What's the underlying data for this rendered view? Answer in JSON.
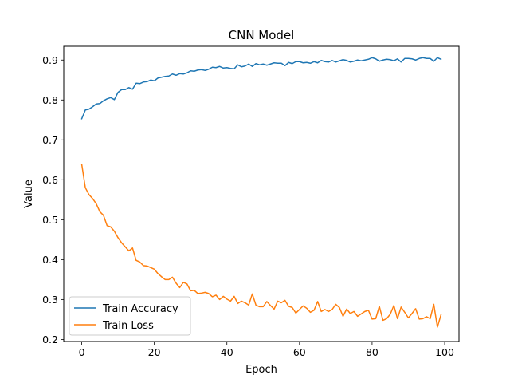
{
  "chart_data": {
    "type": "line",
    "title": "CNN Model",
    "xlabel": "Epoch",
    "ylabel": "Value",
    "xlim": [
      -4.95,
      103.95
    ],
    "ylim": [
      0.1948,
      0.9345
    ],
    "xticks": [
      0,
      20,
      40,
      60,
      80,
      100
    ],
    "yticks": [
      0.2,
      0.3,
      0.4,
      0.5,
      0.6,
      0.7,
      0.8,
      0.9
    ],
    "xtick_labels": [
      "0",
      "20",
      "40",
      "60",
      "80",
      "100"
    ],
    "ytick_labels": [
      "0.2",
      "0.3",
      "0.4",
      "0.5",
      "0.6",
      "0.7",
      "0.8",
      "0.9"
    ],
    "grid": false,
    "legend_position": "lower-left",
    "x": [
      0,
      1,
      2,
      3,
      4,
      5,
      6,
      7,
      8,
      9,
      10,
      11,
      12,
      13,
      14,
      15,
      16,
      17,
      18,
      19,
      20,
      21,
      22,
      23,
      24,
      25,
      26,
      27,
      28,
      29,
      30,
      31,
      32,
      33,
      34,
      35,
      36,
      37,
      38,
      39,
      40,
      41,
      42,
      43,
      44,
      45,
      46,
      47,
      48,
      49,
      50,
      51,
      52,
      53,
      54,
      55,
      56,
      57,
      58,
      59,
      60,
      61,
      62,
      63,
      64,
      65,
      66,
      67,
      68,
      69,
      70,
      71,
      72,
      73,
      74,
      75,
      76,
      77,
      78,
      79,
      80,
      81,
      82,
      83,
      84,
      85,
      86,
      87,
      88,
      89,
      90,
      91,
      92,
      93,
      94,
      95,
      96,
      97,
      98,
      99
    ],
    "series": [
      {
        "name": "Train Accuracy",
        "color": "#1f77b4",
        "values": [
          0.753,
          0.775,
          0.777,
          0.783,
          0.79,
          0.791,
          0.798,
          0.803,
          0.806,
          0.801,
          0.819,
          0.826,
          0.826,
          0.831,
          0.827,
          0.842,
          0.841,
          0.845,
          0.846,
          0.85,
          0.848,
          0.855,
          0.857,
          0.859,
          0.86,
          0.865,
          0.862,
          0.866,
          0.865,
          0.868,
          0.873,
          0.872,
          0.875,
          0.876,
          0.874,
          0.877,
          0.882,
          0.881,
          0.884,
          0.88,
          0.881,
          0.879,
          0.878,
          0.888,
          0.883,
          0.885,
          0.89,
          0.884,
          0.891,
          0.888,
          0.89,
          0.887,
          0.89,
          0.893,
          0.892,
          0.892,
          0.886,
          0.894,
          0.891,
          0.896,
          0.896,
          0.893,
          0.894,
          0.892,
          0.896,
          0.893,
          0.899,
          0.896,
          0.895,
          0.899,
          0.895,
          0.898,
          0.901,
          0.899,
          0.895,
          0.897,
          0.9,
          0.898,
          0.9,
          0.902,
          0.906,
          0.903,
          0.897,
          0.9,
          0.902,
          0.901,
          0.898,
          0.903,
          0.895,
          0.904,
          0.904,
          0.903,
          0.9,
          0.904,
          0.906,
          0.904,
          0.904,
          0.897,
          0.906,
          0.902
        ]
      },
      {
        "name": "Train Loss",
        "color": "#ff7f0e",
        "values": [
          0.639,
          0.58,
          0.563,
          0.553,
          0.54,
          0.52,
          0.511,
          0.485,
          0.482,
          0.471,
          0.455,
          0.442,
          0.432,
          0.422,
          0.429,
          0.398,
          0.394,
          0.385,
          0.384,
          0.38,
          0.376,
          0.365,
          0.357,
          0.35,
          0.35,
          0.356,
          0.341,
          0.33,
          0.343,
          0.339,
          0.322,
          0.323,
          0.315,
          0.316,
          0.318,
          0.315,
          0.307,
          0.311,
          0.3,
          0.308,
          0.301,
          0.296,
          0.308,
          0.29,
          0.296,
          0.292,
          0.286,
          0.314,
          0.286,
          0.282,
          0.282,
          0.295,
          0.285,
          0.276,
          0.296,
          0.292,
          0.298,
          0.283,
          0.28,
          0.266,
          0.275,
          0.284,
          0.278,
          0.268,
          0.273,
          0.295,
          0.27,
          0.275,
          0.27,
          0.275,
          0.288,
          0.28,
          0.258,
          0.276,
          0.265,
          0.27,
          0.258,
          0.264,
          0.27,
          0.273,
          0.251,
          0.252,
          0.283,
          0.248,
          0.252,
          0.263,
          0.285,
          0.252,
          0.281,
          0.268,
          0.254,
          0.265,
          0.277,
          0.251,
          0.252,
          0.257,
          0.252,
          0.288,
          0.231,
          0.262
        ]
      }
    ]
  }
}
